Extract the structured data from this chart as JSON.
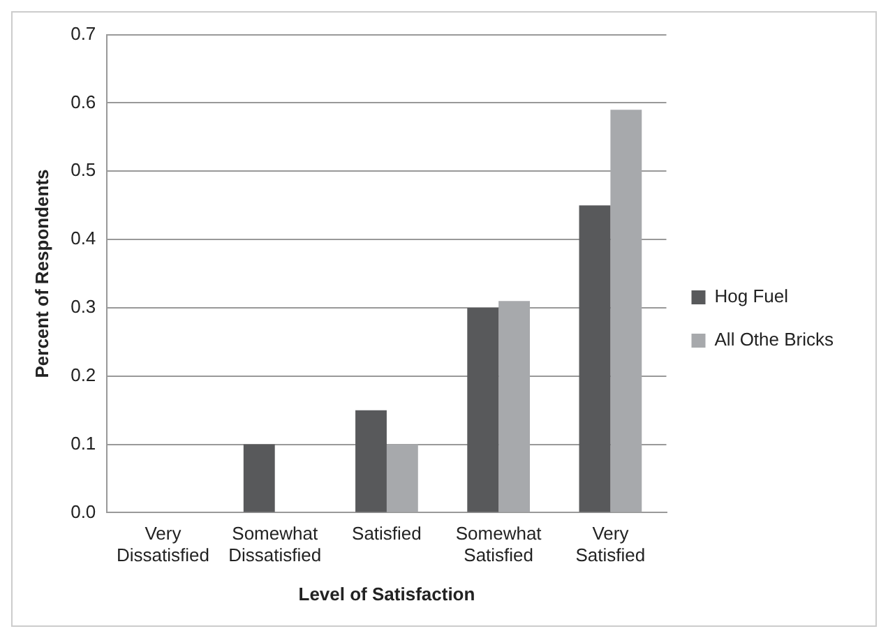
{
  "chart_data": {
    "type": "bar",
    "xlabel": "Level of Satisfaction",
    "ylabel": "Percent of Respondents",
    "categories": [
      "Very Dissatisfied",
      "Somewhat Dissatisfied",
      "Satisfied",
      "Somewhat Satisfied",
      "Very Satisfied"
    ],
    "series": [
      {
        "name": "Hog Fuel",
        "color": "#58595b",
        "values": [
          0,
          0.1,
          0.15,
          0.3,
          0.45
        ]
      },
      {
        "name": "All Othe Bricks",
        "color": "#a7a9ac",
        "values": [
          0,
          0,
          0.1,
          0.31,
          0.59
        ]
      }
    ],
    "ylim": [
      0,
      0.7
    ],
    "yticks": [
      {
        "value": 0,
        "label": "0.0"
      },
      0.1,
      0.2,
      0.3,
      0.4,
      0.5,
      0.6,
      0.7
    ],
    "grid": "y",
    "legend": "right"
  }
}
